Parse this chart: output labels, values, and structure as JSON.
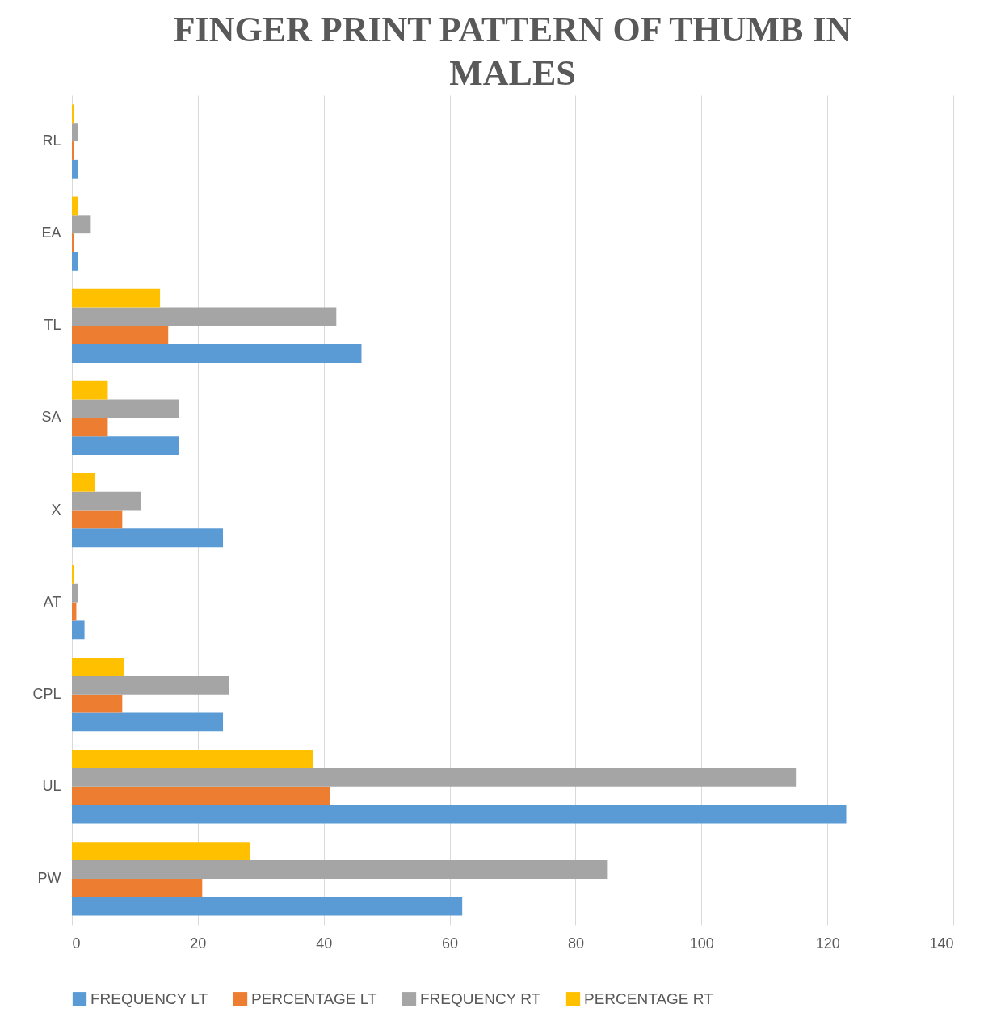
{
  "chart_data": {
    "type": "bar",
    "orientation": "horizontal",
    "title": "FINGER PRINT PATTERN OF THUMB IN MALES",
    "categories": [
      "RL",
      "EA",
      "TL",
      "SA",
      "X",
      "AT",
      "CPL",
      "UL",
      "PW"
    ],
    "series": [
      {
        "name": "FREQUENCY LT",
        "color": "#5b9bd5",
        "values": [
          1,
          1,
          46,
          17,
          24,
          2,
          24,
          123,
          62
        ]
      },
      {
        "name": "PERCENTAGE LT",
        "color": "#ed7d31",
        "values": [
          0.3,
          0.3,
          15.3,
          5.7,
          8,
          0.7,
          8,
          41,
          20.7
        ]
      },
      {
        "name": "FREQUENCY RT",
        "color": "#a5a5a5",
        "values": [
          1,
          3,
          42,
          17,
          11,
          1,
          25,
          115,
          85
        ]
      },
      {
        "name": "PERCENTAGE RT",
        "color": "#ffc000",
        "values": [
          0.3,
          1,
          14,
          5.7,
          3.7,
          0.3,
          8.3,
          38.3,
          28.3
        ]
      }
    ],
    "xlim": [
      0,
      140
    ],
    "xticks": [
      0,
      20,
      40,
      60,
      80,
      100,
      120,
      140
    ],
    "grid": "x",
    "legend": "bottom"
  }
}
